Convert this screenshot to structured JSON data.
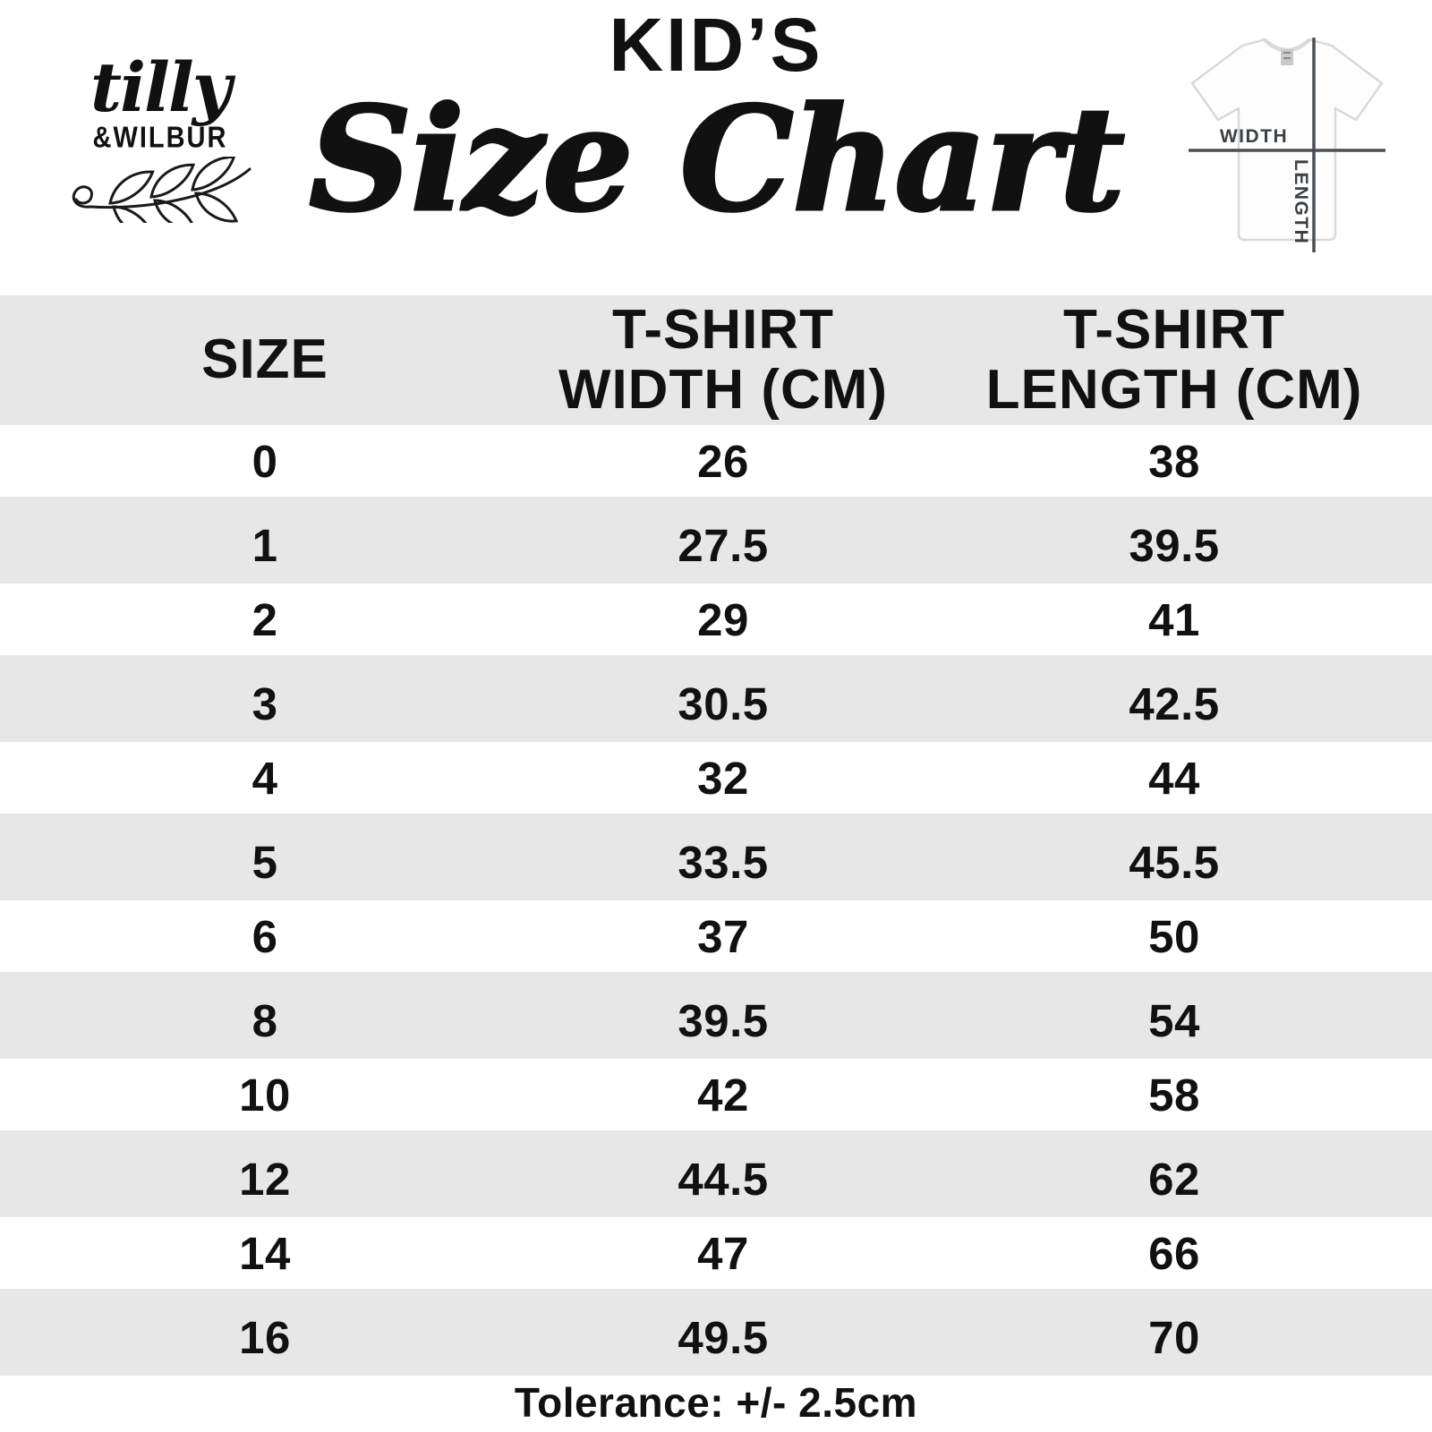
{
  "brand": {
    "script_name": "tilly",
    "caps_name": "&WILBUR"
  },
  "header": {
    "kicker": "KID’S",
    "title": "Size Chart"
  },
  "diagram": {
    "width_label": "WIDTH",
    "length_label": "LENGTH"
  },
  "table": {
    "columns_display": [
      "SIZE",
      "T-SHIRT\nWIDTH (CM)",
      "T-SHIRT\nLENGTH (CM)"
    ]
  },
  "footer": {
    "tolerance": "Tolerance: +/- 2.5cm"
  },
  "colors": {
    "row_alt": "#e7e7e8",
    "ink": "#111111",
    "measure_line": "#4a4f54",
    "shirt_outline": "#d9d9d9"
  },
  "chart_data": {
    "type": "table",
    "title": "KID'S Size Chart",
    "columns": [
      "SIZE",
      "T-SHIRT WIDTH (CM)",
      "T-SHIRT LENGTH (CM)"
    ],
    "rows": [
      [
        "0",
        "26",
        "38"
      ],
      [
        "1",
        "27.5",
        "39.5"
      ],
      [
        "2",
        "29",
        "41"
      ],
      [
        "3",
        "30.5",
        "42.5"
      ],
      [
        "4",
        "32",
        "44"
      ],
      [
        "5",
        "33.5",
        "45.5"
      ],
      [
        "6",
        "37",
        "50"
      ],
      [
        "8",
        "39.5",
        "54"
      ],
      [
        "10",
        "42",
        "58"
      ],
      [
        "12",
        "44.5",
        "62"
      ],
      [
        "14",
        "47",
        "66"
      ],
      [
        "16",
        "49.5",
        "70"
      ]
    ],
    "footnote": "Tolerance: +/- 2.5cm"
  }
}
